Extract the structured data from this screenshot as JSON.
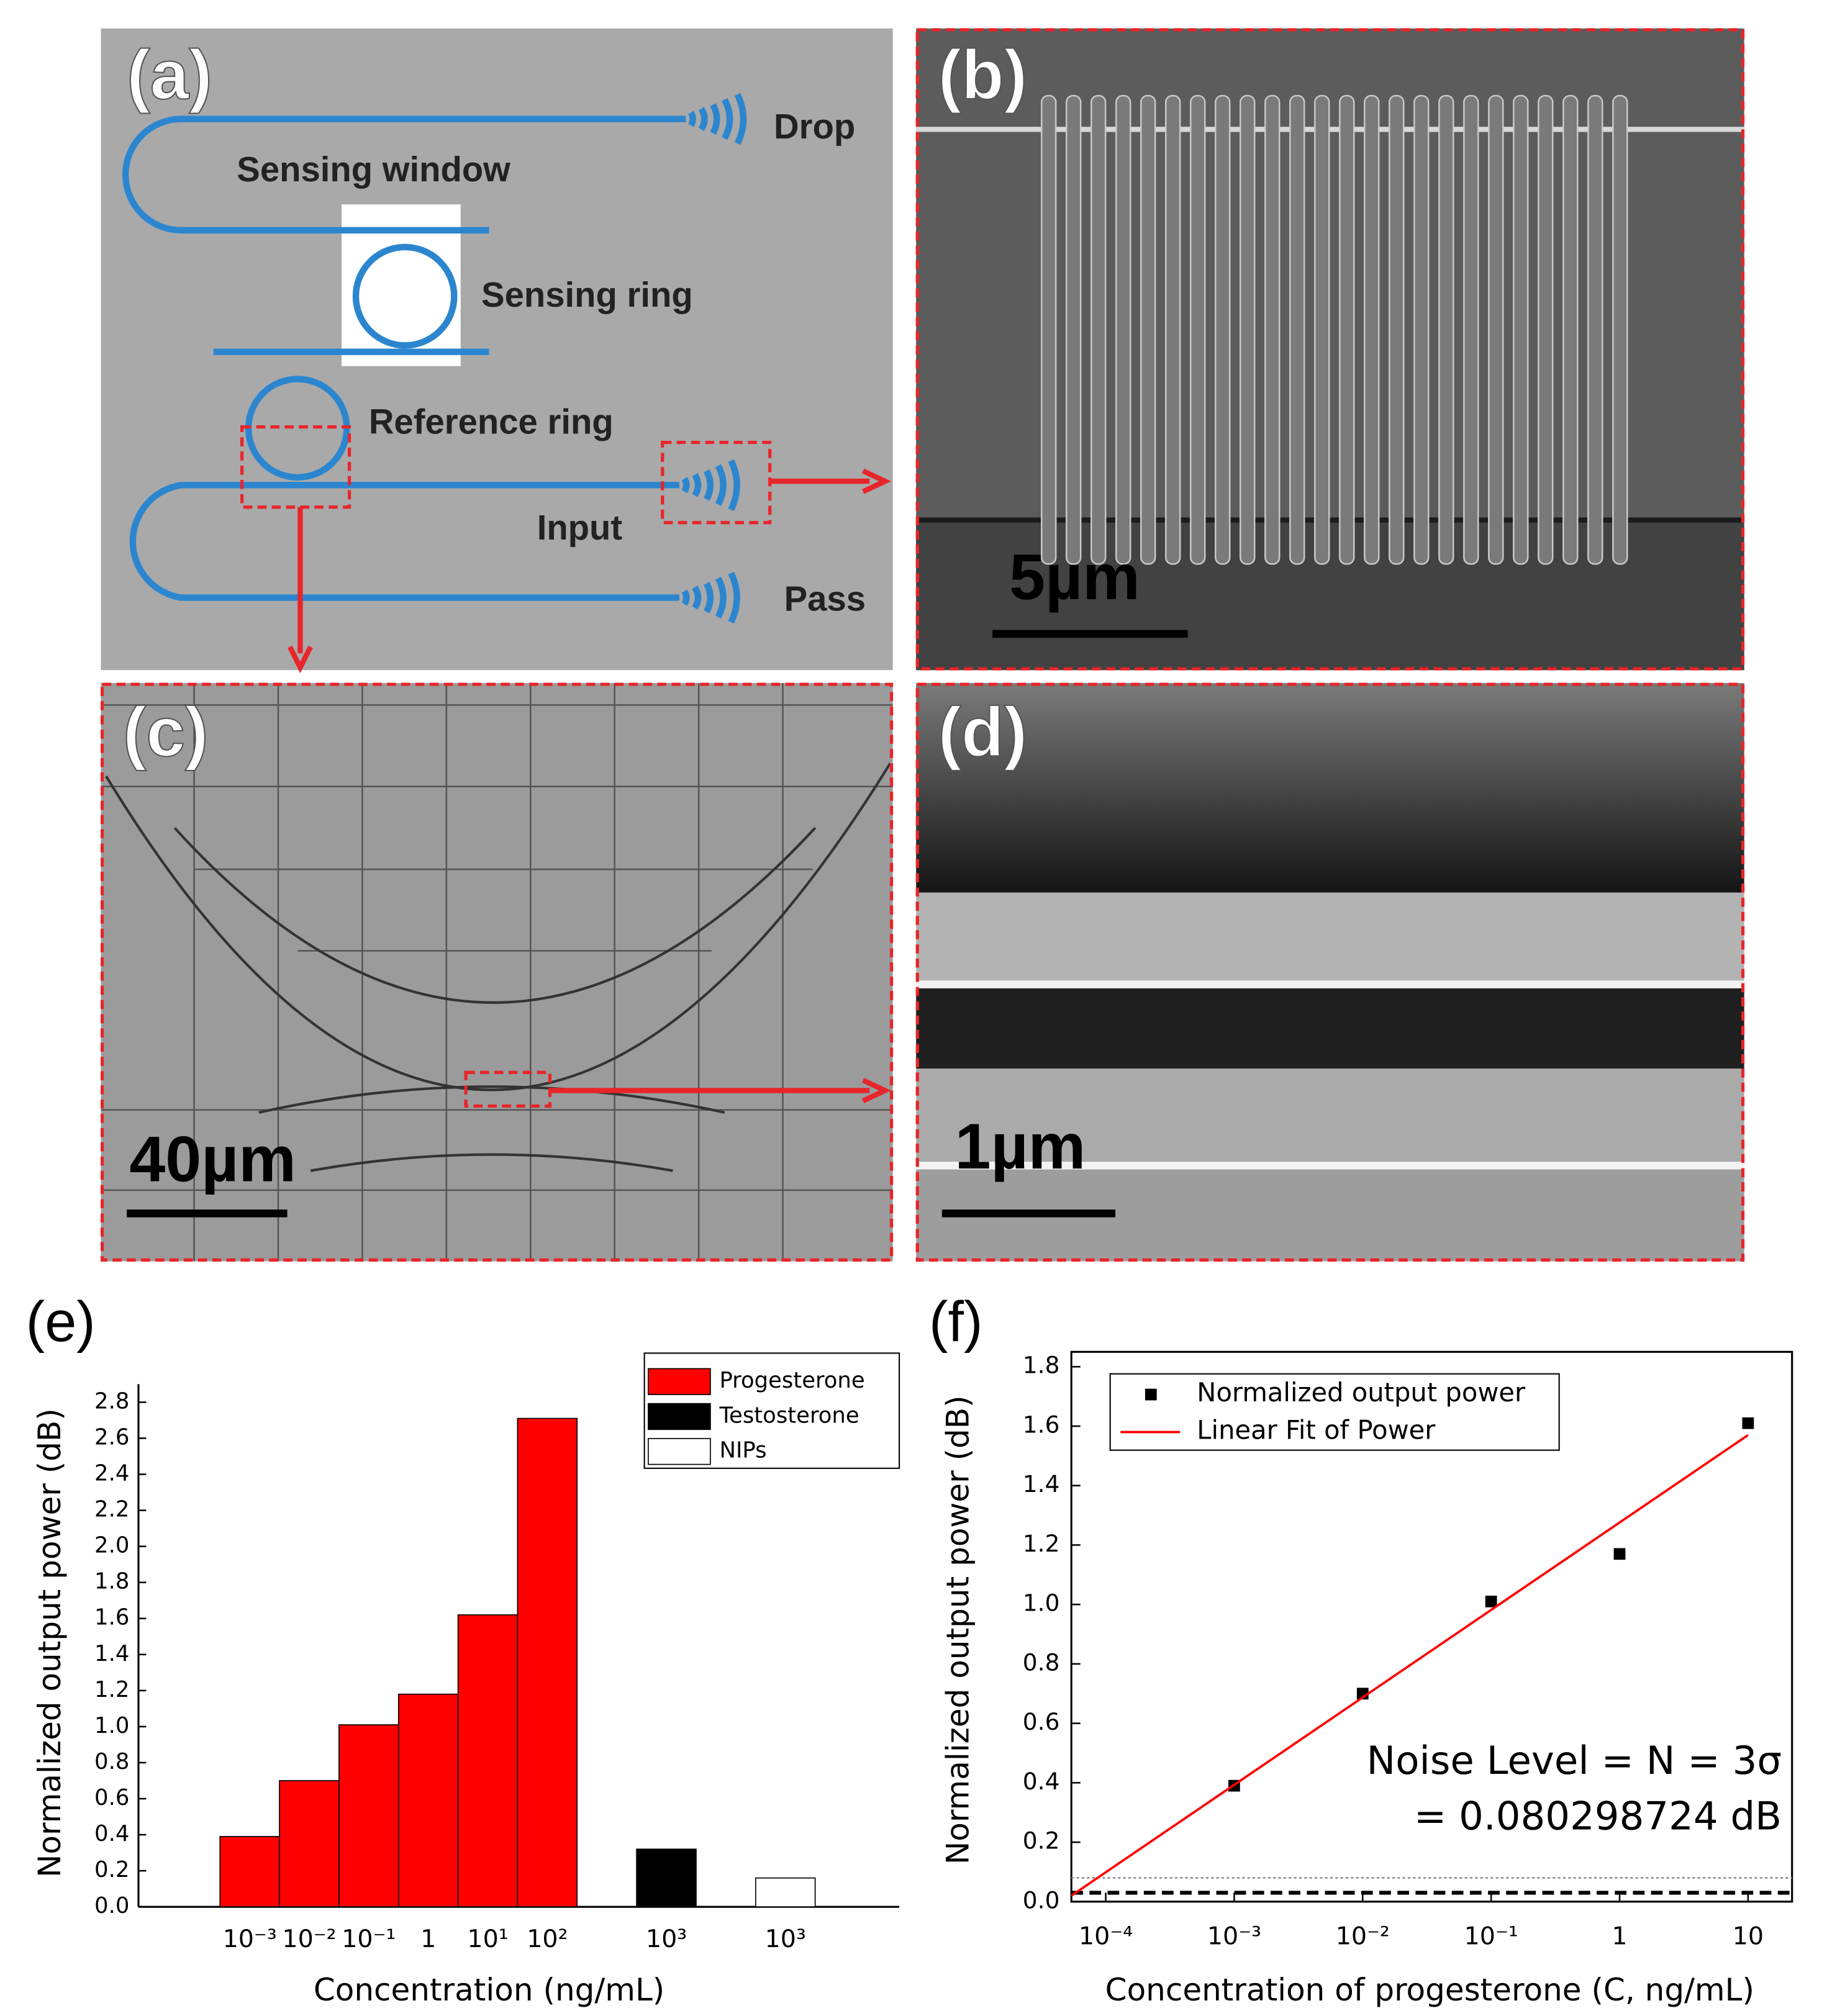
{
  "panels": {
    "a": {
      "label": "(a)",
      "drop": "Drop",
      "sensing_window": "Sensing window",
      "sensing_ring": "Sensing ring",
      "reference_ring": "Reference ring",
      "input": "Input",
      "pass": "Pass"
    },
    "b": {
      "label": "(b)",
      "scale": "5µm"
    },
    "c": {
      "label": "(c)",
      "scale": "40µm"
    },
    "d": {
      "label": "(d)",
      "scale": "1µm"
    }
  },
  "chart_data": [
    {
      "type": "bar",
      "panel_label": "(e)",
      "x_label": "Concentration (ng/mL)",
      "y_label": "Normalized output power (dB)",
      "categories": [
        "10⁻³",
        "10⁻²",
        "10⁻¹",
        "1",
        "10¹",
        "10²",
        "10³",
        "10³"
      ],
      "series": [
        {
          "name": "Progesterone",
          "color": "#ff0000",
          "values": [
            0.39,
            0.7,
            1.01,
            1.18,
            1.62,
            2.71,
            null,
            null
          ]
        },
        {
          "name": "Testosterone",
          "color": "#000000",
          "values": [
            null,
            null,
            null,
            null,
            null,
            null,
            0.32,
            null
          ]
        },
        {
          "name": "NIPs",
          "color": "#ffffff",
          "values": [
            null,
            null,
            null,
            null,
            null,
            null,
            null,
            0.16
          ]
        }
      ],
      "ylim": [
        0,
        2.9
      ],
      "yticks": [
        {
          "value": 0,
          "label": "0.0"
        },
        0.2,
        0.4,
        0.6,
        0.8,
        {
          "value": 1,
          "label": "1.0"
        },
        1.2,
        1.4,
        1.6,
        1.8,
        {
          "value": 2,
          "label": "2.0"
        },
        2.2,
        2.4,
        2.6,
        2.8
      ],
      "legend": "upper right"
    },
    {
      "type": "scatter",
      "panel_label": "(f)",
      "x_label": "Concentration of progesterone (C, ng/mL)",
      "y_label": "Normalized output power (dB)",
      "log_x": true,
      "xlim": [
        5.4e-05,
        22
      ],
      "xticks": [
        {
          "value": 0.0001,
          "label": "10⁻⁴"
        },
        {
          "value": 0.001,
          "label": "10⁻³"
        },
        {
          "value": 0.01,
          "label": "10⁻²"
        },
        {
          "value": 0.1,
          "label": "10⁻¹"
        },
        1,
        10
      ],
      "ylim": [
        0,
        1.85
      ],
      "yticks": [
        {
          "value": 0,
          "label": "0.0"
        },
        0.2,
        0.4,
        0.6,
        0.8,
        {
          "value": 1,
          "label": "1.0"
        },
        1.2,
        1.4,
        1.6,
        1.8
      ],
      "series": [
        {
          "name": "Normalized output power",
          "type": "scatter",
          "color": "#000000",
          "x": [
            0.001,
            0.01,
            0.1,
            1,
            10
          ],
          "values": [
            0.39,
            0.7,
            1.01,
            1.17,
            1.61
          ]
        },
        {
          "name": "Linear Fit of Power",
          "type": "line",
          "color": "#ff0000",
          "x": [
            5.4e-05,
            10
          ],
          "values": [
            0.02,
            1.57
          ]
        }
      ],
      "reference_lines": [
        {
          "value": 0.08,
          "style": "dotted",
          "color": "#888888"
        },
        {
          "value": 0.03,
          "style": "dashed",
          "color": "#000000"
        }
      ],
      "annotations": [
        "Noise Level = N = 3σ",
        "= 0.080298724 dB"
      ],
      "legend": "upper left"
    }
  ]
}
